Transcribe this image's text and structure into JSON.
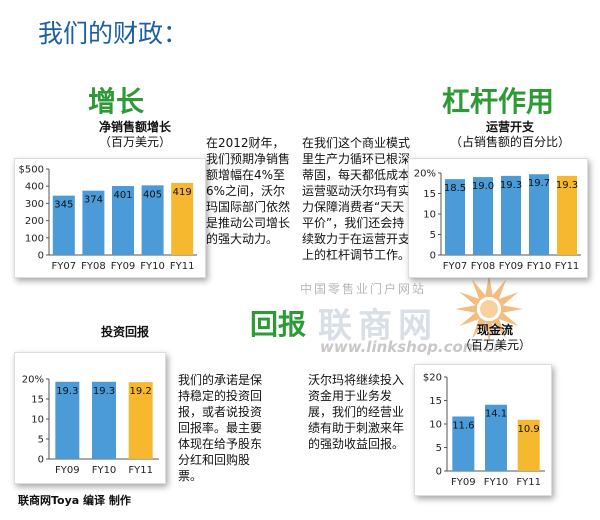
{
  "page": {
    "title": "我们的财政：",
    "credit": "联商网Toya 编译 制作"
  },
  "sections": {
    "growth": "增长",
    "leverage": "杠杆作用",
    "returns": "回报"
  },
  "texts": {
    "growth": "在2012财年，我们预期净销售额增幅在4%至6%之间，沃尔玛国际部门依然是推动公司增长的强大动力。",
    "leverage": "在我们这个商业模式里生产力循环已根深蒂固，每天都低成本运营驱动沃尔玛有实力保障消费者“天天平价”，我们还会持续致力于在运营开支上的杠杆调节工作。",
    "returns": "我们的承诺是保持稳定的投资回报，或者说投资回报率。最主要体现在给予股东分红和回购股票。",
    "cashflow": "沃尔玛将继续投入资金用于业务发展，我们的经营业绩有助于刺激来年的强劲收益回报。"
  },
  "watermark": {
    "line1": "中国零售业门户网站",
    "line2": "联商网",
    "line3": "www.linkshop.com.cn"
  },
  "colors": {
    "bar": "#4a9bd8",
    "highlight": "#f5b82e",
    "section": "#2e9a35",
    "title": "#1d5fa4"
  },
  "chart_data": [
    {
      "id": "sales",
      "type": "bar",
      "title": "净销售额增长",
      "subtitle": "（百万美元）",
      "categories": [
        "FY07",
        "FY08",
        "FY09",
        "FY10",
        "FY11"
      ],
      "values": [
        345,
        374,
        401,
        405,
        419
      ],
      "value_labels": [
        "345",
        "374",
        "401",
        "405",
        "419"
      ],
      "yticks": [
        "$500",
        "400",
        "300",
        "200",
        "100",
        "0"
      ],
      "ylim": [
        0,
        500
      ],
      "highlight_index": 4,
      "grid": false
    },
    {
      "id": "opex",
      "type": "bar",
      "title": "运营开支",
      "subtitle": "（占销售额的百分比）",
      "categories": [
        "FY07",
        "FY08",
        "FY09",
        "FY10",
        "FY11"
      ],
      "values": [
        18.5,
        19.0,
        19.3,
        19.7,
        19.3
      ],
      "value_labels": [
        "18.5",
        "19.0",
        "19.3",
        "19.7",
        "19.3"
      ],
      "yticks": [
        "20%",
        "15",
        "10",
        "5",
        "0"
      ],
      "ylim": [
        0,
        20
      ],
      "highlight_index": 4,
      "grid": false
    },
    {
      "id": "roi",
      "type": "bar",
      "title": "投资回报",
      "subtitle": "",
      "categories": [
        "FY09",
        "FY10",
        "FY11"
      ],
      "values": [
        19.3,
        19.3,
        19.2
      ],
      "value_labels": [
        "19.3",
        "19.3",
        "19.2"
      ],
      "yticks": [
        "20%",
        "15",
        "10",
        "5",
        "0"
      ],
      "ylim": [
        0,
        20
      ],
      "highlight_index": 2,
      "grid": false
    },
    {
      "id": "cash",
      "type": "bar",
      "title": "现金流",
      "subtitle": "（百万美元）",
      "categories": [
        "FY09",
        "FY10",
        "FY11"
      ],
      "values": [
        11.6,
        14.1,
        10.9
      ],
      "value_labels": [
        "11.6",
        "14.1",
        "10.9"
      ],
      "yticks": [
        "$20",
        "15",
        "10",
        "5",
        "0"
      ],
      "ylim": [
        0,
        20
      ],
      "highlight_index": 2,
      "grid": false
    }
  ]
}
